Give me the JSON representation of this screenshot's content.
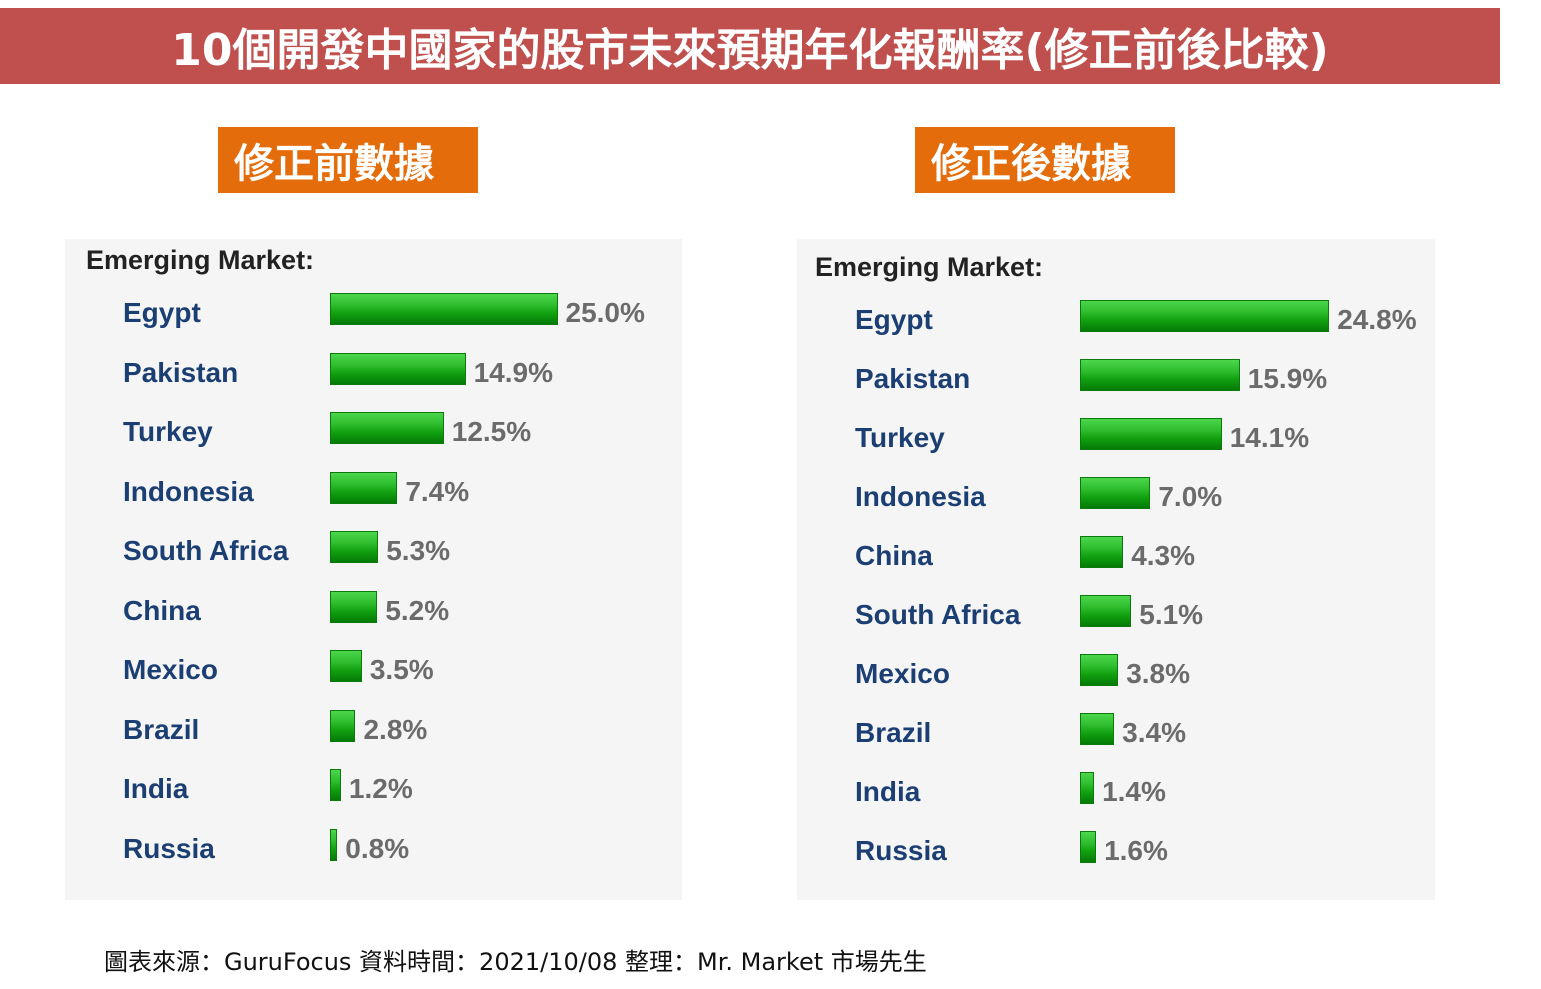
{
  "title": "10個開發中國家的股市未來預期年化報酬率(修正前後比較)",
  "footer": "圖表來源：GuruFocus   資料時間：2021/10/08  整理：Mr. Market 市場先生",
  "colors": {
    "title_bg": "#c0504d",
    "label_bg": "#e46c0a",
    "bar_green": "#1faa1f",
    "country_text": "#1c3f73",
    "value_text": "#6b6b6b"
  },
  "panels": [
    {
      "label": "修正前數據",
      "heading": "Emerging Market:"
    },
    {
      "label": "修正後數據",
      "heading": "Emerging Market:"
    }
  ],
  "chart_data": [
    {
      "type": "bar",
      "title": "Emerging Market:",
      "categories": [
        "Egypt",
        "Pakistan",
        "Turkey",
        "Indonesia",
        "South Africa",
        "China",
        "Mexico",
        "Brazil",
        "India",
        "Russia"
      ],
      "values": [
        25.0,
        14.9,
        12.5,
        7.4,
        5.3,
        5.2,
        3.5,
        2.8,
        1.2,
        0.8
      ],
      "value_labels": [
        "25.0%",
        "14.9%",
        "12.5%",
        "7.4%",
        "5.3%",
        "5.2%",
        "3.5%",
        "2.8%",
        "1.2%",
        "0.8%"
      ]
    },
    {
      "type": "bar",
      "title": "Emerging Market:",
      "categories": [
        "Egypt",
        "Pakistan",
        "Turkey",
        "Indonesia",
        "China",
        "South Africa",
        "Mexico",
        "Brazil",
        "India",
        "Russia"
      ],
      "values": [
        24.8,
        15.9,
        14.1,
        7.0,
        4.3,
        5.1,
        3.8,
        3.4,
        1.4,
        1.6
      ],
      "value_labels": [
        "24.8%",
        "15.9%",
        "14.1%",
        "7.0%",
        "4.3%",
        "5.1%",
        "3.8%",
        "3.4%",
        "1.4%",
        "1.6%"
      ]
    }
  ]
}
